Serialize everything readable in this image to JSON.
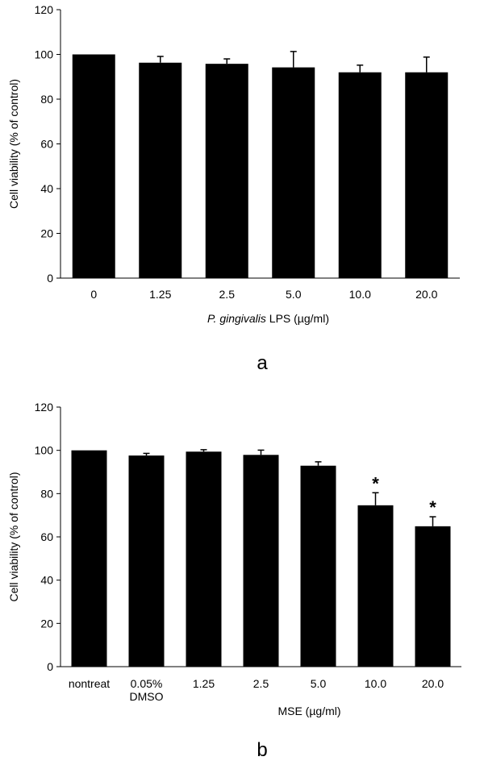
{
  "chart_data": [
    {
      "type": "bar",
      "panel_label": "a",
      "categories": [
        "0",
        "1.25",
        "2.5",
        "5.0",
        "10.0",
        "20.0"
      ],
      "values": [
        100,
        96.3,
        95.8,
        94.2,
        92.0,
        92.0
      ],
      "errors": [
        0,
        2.8,
        2.2,
        7.1,
        3.2,
        6.8
      ],
      "significant": [
        false,
        false,
        false,
        false,
        false,
        false
      ],
      "xlabel_italic": "P. gingivalis",
      "xlabel_rest": "LPS (µg/ml)",
      "ylabel": "Cell viability (% of control)",
      "ylim": [
        0,
        120
      ],
      "yticks": [
        0,
        20,
        40,
        60,
        80,
        100,
        120
      ],
      "bar_color": "#000000"
    },
    {
      "type": "bar",
      "panel_label": "b",
      "categories": [
        [
          "nontreat"
        ],
        [
          "0.05%",
          "DMSO"
        ],
        [
          "1.25"
        ],
        [
          "2.5"
        ],
        [
          "5.0"
        ],
        [
          "10.0"
        ],
        [
          "20.0"
        ]
      ],
      "values": [
        100,
        97.6,
        99.4,
        97.9,
        92.9,
        74.6,
        64.9
      ],
      "errors": [
        0,
        1.0,
        0.9,
        2.2,
        1.8,
        5.8,
        4.4
      ],
      "significant": [
        false,
        false,
        false,
        false,
        false,
        true,
        true
      ],
      "significance_marker": "*",
      "xlabel": "MSE (µg/ml)",
      "ylabel": "Cell viability (% of control)",
      "ylim": [
        0,
        120
      ],
      "yticks": [
        0,
        20,
        40,
        60,
        80,
        100,
        120
      ],
      "bar_color": "#000000"
    }
  ]
}
